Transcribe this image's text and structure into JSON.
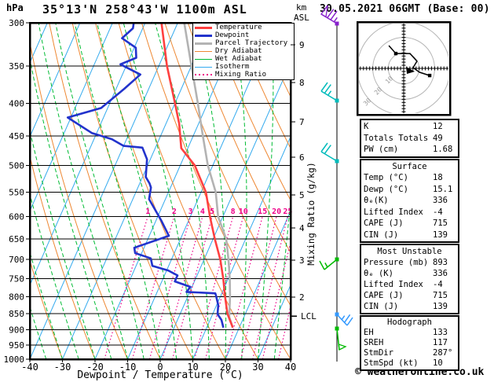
{
  "header": {
    "unit_left": "hPa",
    "station_title": "35°13'N 258°43'W 1100m ASL",
    "datetime_title": "30.05.2021 06GMT (Base: 00)",
    "alt_unit_line1": "km",
    "alt_unit_line2": "ASL"
  },
  "axes": {
    "xlabel": "Dewpoint / Temperature (°C)",
    "x_ticks": [
      -40,
      -30,
      -20,
      -10,
      0,
      10,
      20,
      30,
      40
    ],
    "pressure_ticks": [
      300,
      350,
      400,
      450,
      500,
      550,
      600,
      650,
      700,
      750,
      800,
      850,
      900,
      950,
      1000
    ],
    "mixing_axis_label": "Mixing Ratio (g/kg)",
    "lcl_label": "LCL"
  },
  "legend": [
    {
      "label": "Temperature",
      "color": "#ff4040",
      "style": "thick"
    },
    {
      "label": "Dewpoint",
      "color": "#2233cc",
      "style": "thick"
    },
    {
      "label": "Parcel Trajectory",
      "color": "#b3b3b3",
      "style": "thick"
    },
    {
      "label": "Dry Adiabat",
      "color": "#ee8833",
      "style": "thin"
    },
    {
      "label": "Wet Adiabat",
      "color": "#00bb33",
      "style": "thin"
    },
    {
      "label": "Isotherm",
      "color": "#33aaee",
      "style": "thin"
    },
    {
      "label": "Mixing Ratio",
      "color": "#ee0088",
      "style": "dotted"
    }
  ],
  "chart_data": {
    "type": "skewt-logp",
    "title": "35°13'N 258°43'W 1100m ASL",
    "xlabel": "Dewpoint / Temperature (°C)",
    "pressure_range_hpa": [
      300,
      1000
    ],
    "temp_range_c": [
      -40,
      40
    ],
    "pressure_gridlines": [
      350,
      400,
      450,
      500,
      550,
      600,
      650,
      700,
      750,
      800,
      850,
      900,
      950
    ],
    "temperature_profile_p_t": [
      [
        300,
        -45
      ],
      [
        350,
        -37.5
      ],
      [
        400,
        -30
      ],
      [
        430,
        -26
      ],
      [
        470,
        -22
      ],
      [
        500,
        -15.5
      ],
      [
        550,
        -8.5
      ],
      [
        600,
        -4
      ],
      [
        650,
        0.5
      ],
      [
        700,
        5
      ],
      [
        750,
        8.5
      ],
      [
        800,
        11.5
      ],
      [
        850,
        14.5
      ],
      [
        893,
        18
      ]
    ],
    "dewpoint_profile_p_t": [
      [
        300,
        -53.5
      ],
      [
        306,
        -53
      ],
      [
        317,
        -55
      ],
      [
        328,
        -49.5
      ],
      [
        340,
        -48
      ],
      [
        348,
        -52
      ],
      [
        361,
        -44.5
      ],
      [
        380,
        -47.5
      ],
      [
        407,
        -52
      ],
      [
        421,
        -61
      ],
      [
        445,
        -51.5
      ],
      [
        455,
        -44.5
      ],
      [
        466,
        -40
      ],
      [
        469,
        -34
      ],
      [
        489,
        -31
      ],
      [
        521,
        -29
      ],
      [
        533,
        -27
      ],
      [
        541,
        -26
      ],
      [
        564,
        -25
      ],
      [
        608,
        -18.5
      ],
      [
        643,
        -14
      ],
      [
        671,
        -23
      ],
      [
        684,
        -22
      ],
      [
        697,
        -16.5
      ],
      [
        716,
        -15
      ],
      [
        728,
        -9.5
      ],
      [
        741,
        -6
      ],
      [
        757,
        -6
      ],
      [
        772,
        -0.5
      ],
      [
        786,
        -1
      ],
      [
        790,
        8
      ],
      [
        796,
        8.5
      ],
      [
        824,
        10.5
      ],
      [
        851,
        11.5
      ],
      [
        869,
        13.5
      ],
      [
        893,
        15.1
      ]
    ],
    "parcel_profile_p_t": [
      [
        300,
        -38
      ],
      [
        350,
        -30
      ],
      [
        400,
        -23
      ],
      [
        450,
        -17
      ],
      [
        500,
        -11.5
      ],
      [
        550,
        -5.5
      ],
      [
        600,
        -1.5
      ],
      [
        650,
        4
      ],
      [
        700,
        7.5
      ],
      [
        750,
        10.5
      ],
      [
        800,
        13
      ],
      [
        860,
        15.5
      ],
      [
        893,
        18
      ]
    ],
    "isotherms_c": {
      "min": -110,
      "max": 40,
      "step": 10
    },
    "dry_adiabats_theta_c": {
      "min": -40,
      "max": 160,
      "step": 10
    },
    "wet_adiabats_t0_c": {
      "min": -55,
      "max": 40,
      "step": 5
    },
    "mixing_ratio_lines_gkg": [
      1,
      2,
      3,
      4,
      5,
      8,
      10,
      15,
      20,
      25,
      30,
      40
    ],
    "mixing_ratio_labels_gkg": [
      1,
      2,
      3,
      4,
      5,
      8,
      10,
      15,
      20,
      25
    ],
    "km_ticks": [
      {
        "km": 9,
        "y": 57
      },
      {
        "km": 8,
        "y": 105
      },
      {
        "km": 7,
        "y": 155
      },
      {
        "km": 6,
        "y": 200
      },
      {
        "km": 5,
        "y": 248
      },
      {
        "km": 4,
        "y": 290
      },
      {
        "km": 3,
        "y": 331
      },
      {
        "km": 2,
        "y": 378
      }
    ],
    "lcl_y": 402,
    "wind_barbs": [
      {
        "y": 30,
        "color": "#8822cc",
        "dir": "up-left",
        "full": 2,
        "half": 1,
        "pennant": 1
      },
      {
        "y": 128,
        "color": "#00bbbb",
        "dir": "up-left",
        "full": 2,
        "half": 1,
        "pennant": 0
      },
      {
        "y": 205,
        "color": "#00bbbb",
        "dir": "up-left",
        "full": 2,
        "half": 0,
        "pennant": 0
      },
      {
        "y": 330,
        "color": "#00bb00",
        "dir": "down-left",
        "full": 1,
        "half": 1,
        "pennant": 0
      },
      {
        "y": 400,
        "color": "#3399ff",
        "dir": "down-right",
        "full": 2,
        "half": 1,
        "pennant": 0
      },
      {
        "y": 418,
        "color": "#00bb00",
        "dir": "down",
        "full": 0,
        "half": 0,
        "pennant": 1
      }
    ]
  },
  "hodograph": {
    "unit_label": "kt",
    "rings_kt": [
      10,
      20,
      30
    ],
    "trace_kt": [
      [
        -9.6,
        14.7
      ],
      [
        -5.1,
        9.6
      ],
      [
        4.1,
        9.6
      ],
      [
        8.6,
        4.6
      ],
      [
        6.1,
        0.5
      ],
      [
        10.2,
        -2.5
      ],
      [
        16.8,
        -4.6
      ]
    ],
    "marker_indices": [
      1,
      6
    ],
    "arrow_kt": [
      3.6,
      -1
    ]
  },
  "panels": [
    {
      "rows": [
        {
          "label": "K",
          "value": "12"
        },
        {
          "label": "Totals Totals",
          "value": "49"
        },
        {
          "label": "PW (cm)",
          "value": "1.68"
        }
      ]
    },
    {
      "title": "Surface",
      "rows": [
        {
          "label": "Temp (°C)",
          "value": "18"
        },
        {
          "label": "Dewp (°C)",
          "value": "15.1"
        },
        {
          "label": "θₑ(K)",
          "value": "336"
        },
        {
          "label": "Lifted Index",
          "value": "-4"
        },
        {
          "label": "CAPE (J)",
          "value": "715"
        },
        {
          "label": "CIN (J)",
          "value": "139"
        }
      ]
    },
    {
      "title": "Most Unstable",
      "rows": [
        {
          "label": "Pressure (mb)",
          "value": "893"
        },
        {
          "label": "θₑ (K)",
          "value": "336"
        },
        {
          "label": "Lifted Index",
          "value": "-4"
        },
        {
          "label": "CAPE (J)",
          "value": "715"
        },
        {
          "label": "CIN (J)",
          "value": "139"
        }
      ]
    },
    {
      "title": "Hodograph",
      "rows": [
        {
          "label": "EH",
          "value": "133"
        },
        {
          "label": "SREH",
          "value": "117"
        },
        {
          "label": "StmDir",
          "value": "287°"
        },
        {
          "label": "StmSpd (kt)",
          "value": "10"
        }
      ]
    }
  ],
  "footer": {
    "credit": "© weatheronline.co.uk"
  },
  "colors": {
    "temperature": "#ff4040",
    "dewpoint": "#2233cc",
    "parcel": "#b3b3b3",
    "dry_adiabat": "#ee8833",
    "wet_adiabat": "#00bb33",
    "isotherm": "#33aaee",
    "mixing_ratio": "#ee0088",
    "grid": "#000000",
    "hodograph_rings": "#b5b5b5"
  }
}
